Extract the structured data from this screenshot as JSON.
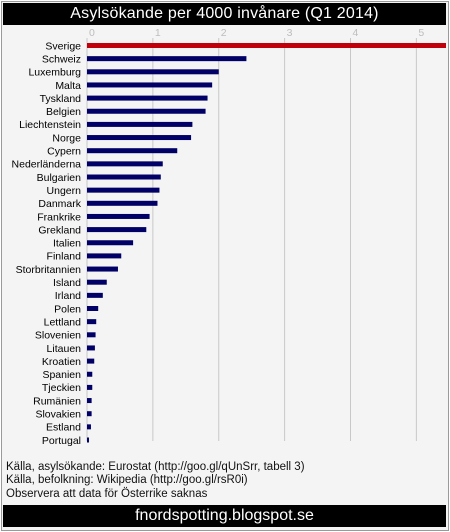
{
  "title": "Asylsökande per 4000 invånare (Q1 2014)",
  "footer": "fnordspotting.blogspot.se",
  "notes": [
    "Källa, asylsökande: Eurostat (http://goo.gl/qUnSrr, tabell 3)",
    "Källa, befolkning: Wikipedia (http://goo.gl/rsR0i)",
    "Observera att data för Österrike saknas"
  ],
  "colors": {
    "highlight": "#c0000a",
    "bar": "#000066",
    "grid": "#c8c8c8",
    "title_bg": "#000000"
  },
  "chart_data": {
    "type": "bar",
    "orientation": "horizontal",
    "title": "Asylsökande per 4000 invånare (Q1 2014)",
    "xlabel": "",
    "ylabel": "",
    "xlim": [
      0,
      5.45
    ],
    "xticks": [
      0,
      1,
      2,
      3,
      4,
      5
    ],
    "grid": true,
    "highlight_category": "Sverige",
    "categories": [
      "Sverige",
      "Schweiz",
      "Luxemburg",
      "Malta",
      "Tyskland",
      "Belgien",
      "Liechtenstein",
      "Norge",
      "Cypern",
      "Nederländerna",
      "Bulgarien",
      "Ungern",
      "Danmark",
      "Frankrike",
      "Grekland",
      "Italien",
      "Finland",
      "Storbritannien",
      "Island",
      "Irland",
      "Polen",
      "Lettland",
      "Slovenien",
      "Litauen",
      "Kroatien",
      "Spanien",
      "Tjeckien",
      "Rumänien",
      "Slovakien",
      "Estland",
      "Portugal"
    ],
    "values": [
      5.45,
      2.42,
      2.0,
      1.9,
      1.83,
      1.8,
      1.6,
      1.58,
      1.37,
      1.15,
      1.12,
      1.1,
      1.07,
      0.95,
      0.9,
      0.7,
      0.52,
      0.47,
      0.3,
      0.24,
      0.17,
      0.14,
      0.13,
      0.12,
      0.11,
      0.08,
      0.08,
      0.07,
      0.07,
      0.06,
      0.03
    ]
  }
}
